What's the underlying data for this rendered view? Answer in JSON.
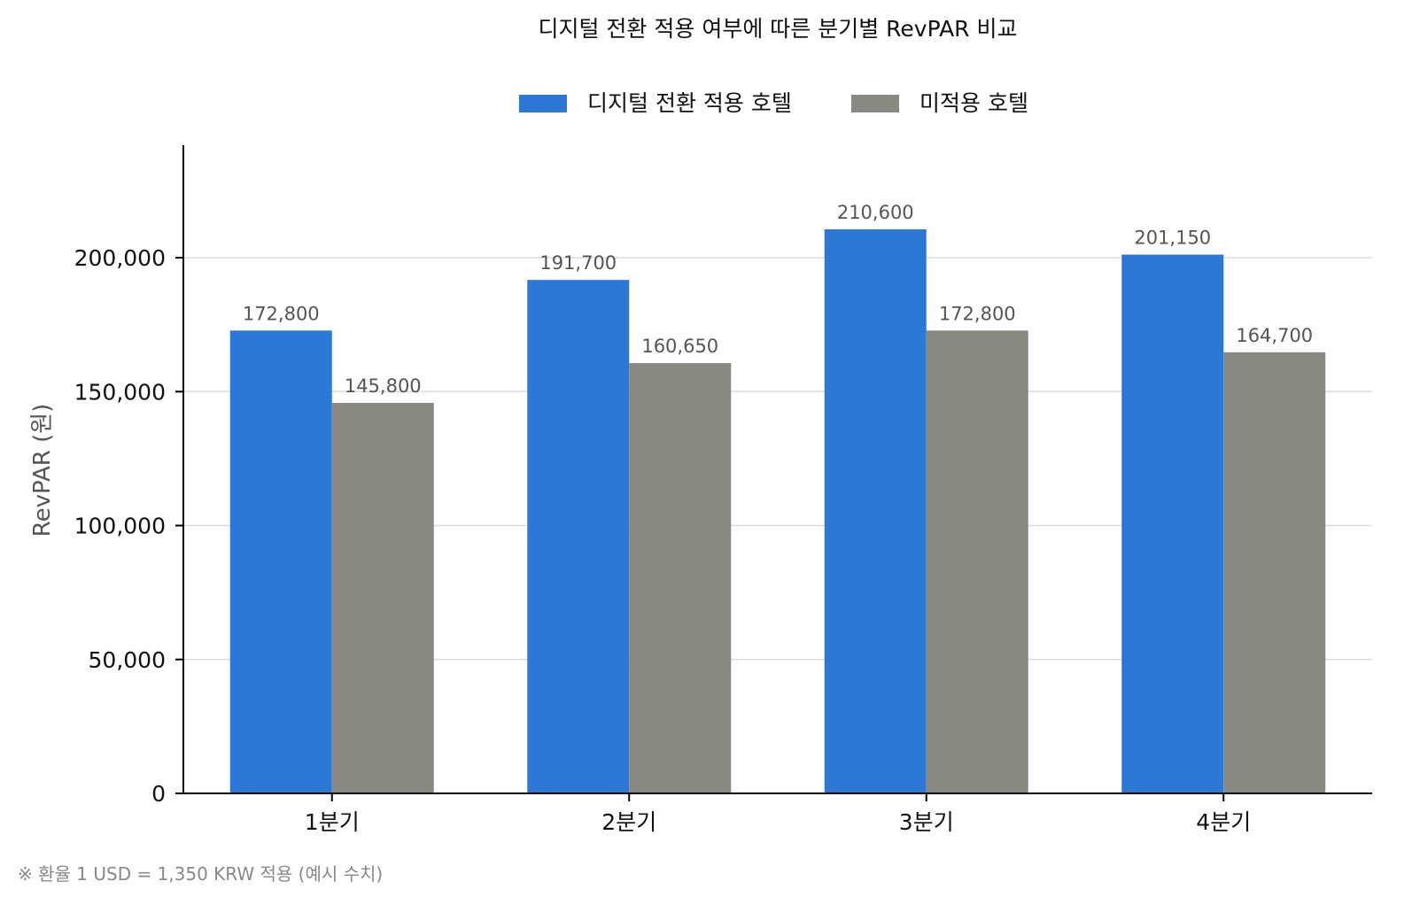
{
  "chart_data": {
    "type": "bar",
    "title": "디지털 전환 적용 여부에 따른 분기별 RevPAR 비교",
    "xlabel": "",
    "ylabel": "RevPAR (원)",
    "categories": [
      "1분기",
      "2분기",
      "3분기",
      "4분기"
    ],
    "series": [
      {
        "name": "디지털 전환 적용 호텔",
        "color": "#2b78d6",
        "values": [
          172800,
          191700,
          210600,
          201150
        ],
        "labels": [
          "172,800",
          "191,700",
          "210,600",
          "201,150"
        ]
      },
      {
        "name": "미적용 호텔",
        "color": "#898984",
        "values": [
          145800,
          160650,
          172800,
          164700
        ],
        "labels": [
          "145,800",
          "160,650",
          "172,800",
          "164,700"
        ]
      }
    ],
    "ylim": [
      0,
      242000
    ],
    "yticks": [
      0,
      50000,
      100000,
      150000,
      200000
    ],
    "ytick_labels": [
      "0",
      "50,000",
      "100,000",
      "150,000",
      "200,000"
    ],
    "grid": "horizontal",
    "legend_position": "top-center",
    "footnote": "※ 환율 1 USD = 1,350 KRW 적용 (예시 수치)"
  }
}
